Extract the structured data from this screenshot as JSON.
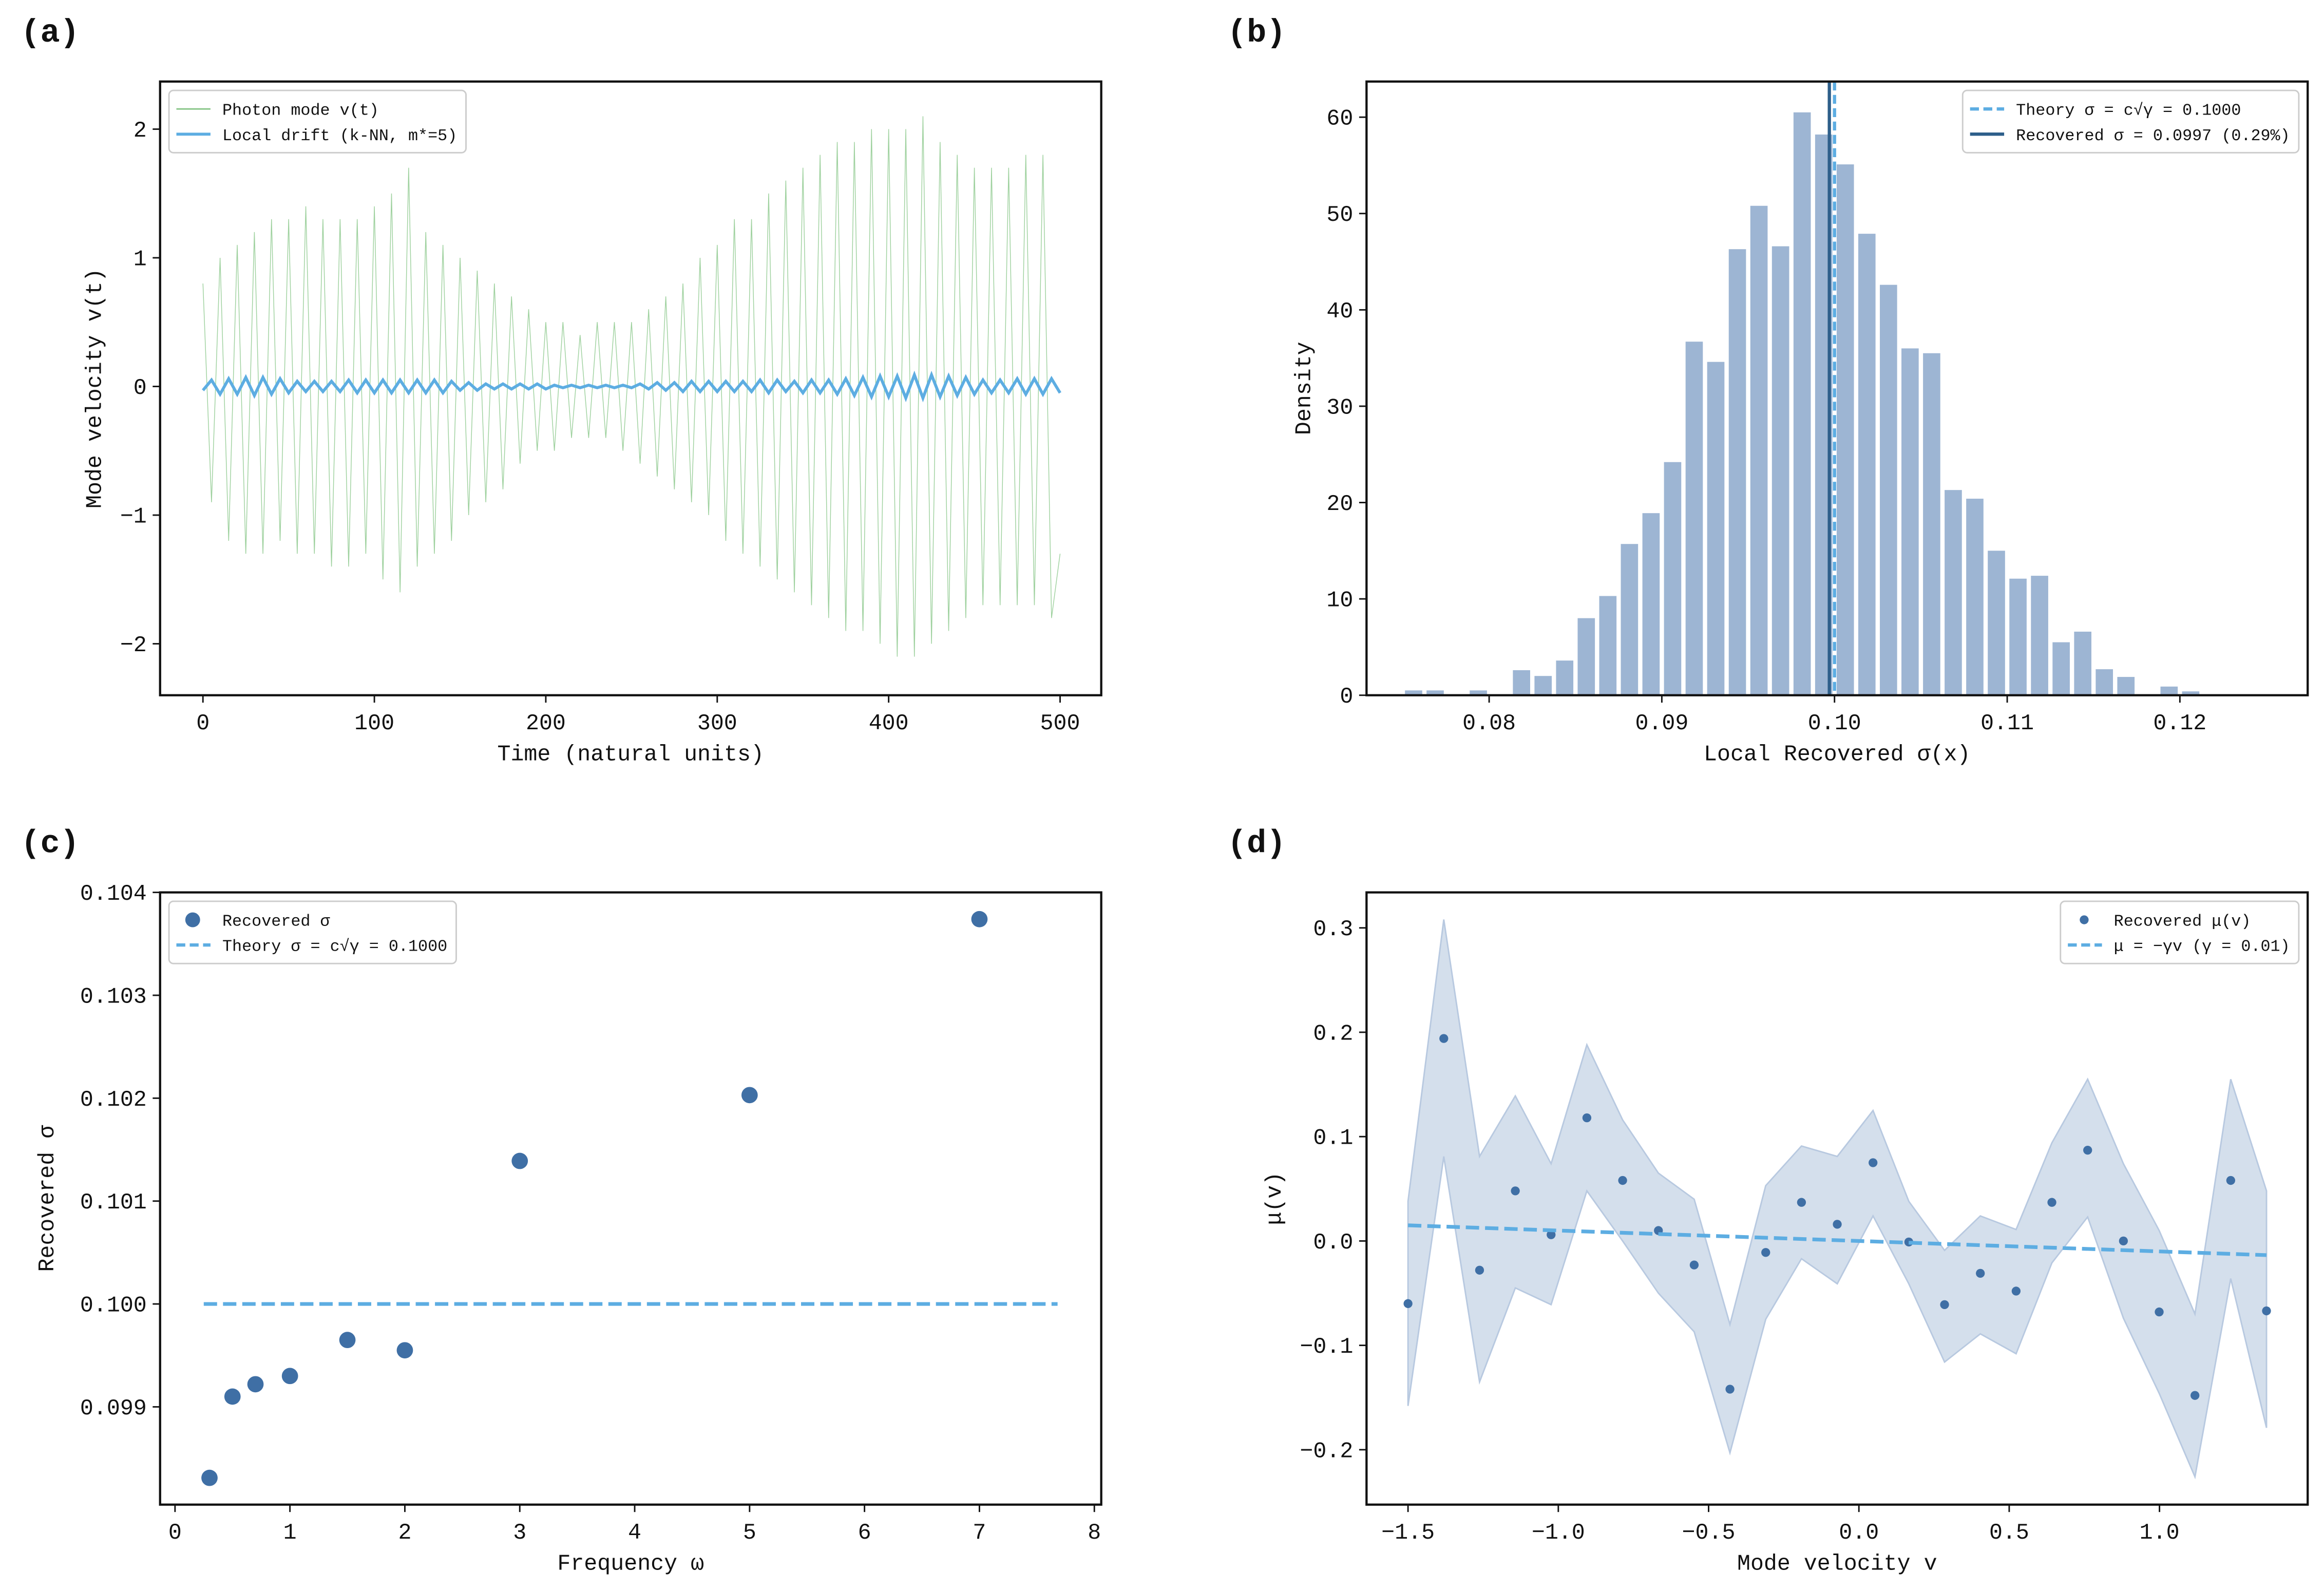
{
  "chart_data": [
    {
      "type": "line",
      "panel_label": "(a)",
      "xlabel": "Time (natural units)",
      "ylabel": "Mode velocity v(t)",
      "legend": "upper left",
      "xlim": [
        -25,
        524
      ],
      "ylim": [
        -2.4,
        2.37
      ],
      "xticks": [
        0,
        100,
        200,
        300,
        400,
        500
      ],
      "yticks": [
        {
          "value": -2,
          "label": "−2"
        },
        {
          "value": -1,
          "label": "−1"
        },
        0,
        1,
        2
      ],
      "x": [
        0,
        5,
        10,
        15,
        20,
        25,
        30,
        35,
        40,
        45,
        50,
        55,
        60,
        65,
        70,
        75,
        80,
        85,
        90,
        95,
        100,
        105,
        110,
        115,
        120,
        125,
        130,
        135,
        140,
        145,
        150,
        155,
        160,
        165,
        170,
        175,
        180,
        185,
        190,
        195,
        200,
        205,
        210,
        215,
        220,
        225,
        230,
        235,
        240,
        245,
        250,
        255,
        260,
        265,
        270,
        275,
        280,
        285,
        290,
        295,
        300,
        305,
        310,
        315,
        320,
        325,
        330,
        335,
        340,
        345,
        350,
        355,
        360,
        365,
        370,
        375,
        380,
        385,
        390,
        395,
        400,
        405,
        410,
        415,
        420,
        425,
        430,
        435,
        440,
        445,
        450,
        455,
        460,
        465,
        470,
        475,
        480,
        485,
        490,
        495,
        500
      ],
      "series": [
        {
          "name": "Photon mode v(t)",
          "color": "#86c586",
          "linewidth": 0.5,
          "values": [
            0.8,
            -0.9,
            1.0,
            -1.2,
            1.1,
            -1.3,
            1.2,
            -1.3,
            1.3,
            -1.2,
            1.3,
            -1.3,
            1.4,
            -1.3,
            1.3,
            -1.4,
            1.3,
            -1.4,
            1.3,
            -1.3,
            1.4,
            -1.5,
            1.5,
            -1.6,
            1.7,
            -1.4,
            1.2,
            -1.3,
            1.1,
            -1.2,
            1.0,
            -1.0,
            0.9,
            -0.9,
            0.8,
            -0.8,
            0.7,
            -0.6,
            0.6,
            -0.5,
            0.5,
            -0.5,
            0.5,
            -0.4,
            0.4,
            -0.4,
            0.5,
            -0.4,
            0.5,
            -0.5,
            0.5,
            -0.6,
            0.6,
            -0.7,
            0.7,
            -0.8,
            0.8,
            -0.9,
            1.0,
            -1.0,
            1.1,
            -1.2,
            1.3,
            -1.3,
            1.3,
            -1.4,
            1.5,
            -1.5,
            1.6,
            -1.6,
            1.7,
            -1.7,
            1.8,
            -1.8,
            1.9,
            -1.9,
            1.9,
            -1.9,
            2.0,
            -2.0,
            2.0,
            -2.1,
            2.0,
            -2.1,
            2.1,
            -2.0,
            1.9,
            -1.9,
            1.8,
            -1.8,
            1.7,
            -1.7,
            1.7,
            -1.7,
            1.7,
            -1.7,
            1.8,
            -1.7,
            1.8,
            -1.8,
            -1.3
          ]
        },
        {
          "name": "Local drift (k-NN, m*=5)",
          "color": "#5dade2",
          "linewidth": 2,
          "values": [
            -0.03,
            0.05,
            -0.06,
            0.06,
            -0.06,
            0.07,
            -0.07,
            0.07,
            -0.06,
            0.06,
            -0.05,
            0.04,
            -0.04,
            0.04,
            -0.04,
            0.04,
            -0.04,
            0.05,
            -0.05,
            0.05,
            -0.05,
            0.05,
            -0.05,
            0.05,
            -0.05,
            0.05,
            -0.05,
            0.05,
            -0.05,
            0.04,
            -0.03,
            0.03,
            -0.03,
            0.02,
            -0.02,
            0.02,
            -0.02,
            0.02,
            -0.02,
            0.02,
            -0.02,
            0.01,
            -0.01,
            0.01,
            -0.01,
            0.01,
            -0.01,
            0.01,
            -0.01,
            0.01,
            -0.01,
            0.02,
            -0.02,
            0.03,
            -0.03,
            0.03,
            -0.04,
            0.04,
            -0.04,
            0.04,
            -0.04,
            0.04,
            -0.04,
            0.04,
            -0.04,
            0.05,
            -0.05,
            0.05,
            -0.04,
            0.04,
            -0.05,
            0.05,
            -0.05,
            0.05,
            -0.06,
            0.06,
            -0.07,
            0.07,
            -0.08,
            0.08,
            -0.08,
            0.08,
            -0.09,
            0.09,
            -0.09,
            0.09,
            -0.08,
            0.08,
            -0.07,
            0.07,
            -0.06,
            0.05,
            -0.05,
            0.05,
            -0.05,
            0.06,
            -0.06,
            0.06,
            -0.06,
            0.06,
            -0.05
          ]
        }
      ]
    },
    {
      "type": "histogram",
      "panel_label": "(b)",
      "xlabel": "Local Recovered σ(x)",
      "ylabel": "Density",
      "legend": "upper right",
      "xlim": [
        0.0729,
        0.1274
      ],
      "ylim": [
        0,
        63.7
      ],
      "xticks": [
        0.08,
        0.09,
        {
          "value": 0.1,
          "label": "0.10"
        },
        0.11,
        0.12
      ],
      "yticks": [
        0,
        10,
        20,
        30,
        40,
        50,
        60
      ],
      "color": "#9db5d3",
      "bins": [
        0.075,
        0.07625,
        0.0775,
        0.07875,
        0.08,
        0.08125,
        0.0825,
        0.08375,
        0.085,
        0.08625,
        0.0875,
        0.08875,
        0.09,
        0.09125,
        0.0925,
        0.09375,
        0.095,
        0.09625,
        0.0975,
        0.09875,
        0.1,
        0.10125,
        0.1025,
        0.10375,
        0.105,
        0.10625,
        0.1075,
        0.10875,
        0.11,
        0.11125,
        0.1125,
        0.11375,
        0.115,
        0.11625,
        0.1175,
        0.11875,
        0.12,
        0.12125
      ],
      "values": [
        0.5,
        0.5,
        0,
        0.5,
        0,
        2.6,
        2.0,
        3.6,
        8.0,
        10.3,
        15.7,
        18.9,
        24.2,
        36.7,
        34.6,
        46.3,
        50.8,
        46.6,
        60.5,
        58.2,
        55.1,
        47.9,
        42.6,
        36.0,
        35.5,
        21.3,
        20.4,
        15.0,
        12.1,
        12.4,
        5.5,
        6.6,
        2.7,
        1.9,
        0,
        0.9,
        0.4
      ],
      "series": [
        {
          "name": "Theory σ = c√γ = 0.1000",
          "color": "#5dade2",
          "style": "dashed",
          "x_value": 0.1
        },
        {
          "name": "Recovered σ = 0.0997 (0.29%)",
          "color": "#2e5f8a",
          "x_value": 0.0997
        }
      ]
    },
    {
      "type": "scatter",
      "panel_label": "(c)",
      "xlabel": "Frequency ω",
      "ylabel": "Recovered σ",
      "legend": "upper left",
      "xlim": [
        -0.13,
        8.06
      ],
      "ylim": [
        0.09805,
        0.104
      ],
      "xticks": [
        0,
        1,
        2,
        3,
        4,
        5,
        6,
        7,
        8
      ],
      "yticks": [
        0.099,
        {
          "value": 0.1,
          "label": "0.100"
        },
        0.101,
        0.102,
        0.103,
        0.104
      ],
      "series": [
        {
          "name": "Recovered σ",
          "color": "#3f6fa5",
          "x": [
            0.3,
            0.5,
            0.7,
            1,
            1.5,
            2,
            3,
            5,
            7
          ],
          "values": [
            0.09831,
            0.0991,
            0.09922,
            0.0993,
            0.09965,
            0.09955,
            0.10139,
            0.10203,
            0.10374
          ]
        },
        {
          "name": "Theory σ = c√γ = 0.1000",
          "color": "#5dade2",
          "type": "line",
          "style": "dashed",
          "x": [
            0.25,
            7.68
          ],
          "values": [
            0.1,
            0.1
          ]
        }
      ]
    },
    {
      "type": "scatter",
      "panel_label": "(d)",
      "xlabel": "Mode velocity v",
      "ylabel": "μ(v)",
      "legend": "upper right",
      "xlim": [
        -1.638,
        1.493
      ],
      "ylim": [
        -0.2526,
        0.334
      ],
      "xticks": [
        {
          "value": -1.5,
          "label": "−1.5"
        },
        {
          "value": -1,
          "label": "−1.0"
        },
        {
          "value": -0.5,
          "label": "−0.5"
        },
        {
          "value": 0,
          "label": "0.0"
        },
        0.5,
        {
          "value": 1,
          "label": "1.0"
        }
      ],
      "yticks": [
        {
          "value": -0.2,
          "label": "−0.2"
        },
        {
          "value": -0.1,
          "label": "−0.1"
        },
        {
          "value": 0,
          "label": "0.0"
        },
        0.1,
        0.2,
        0.3
      ],
      "band": {
        "color": "#b8c9e0",
        "x": [
          -1.5,
          -1.381,
          -1.262,
          -1.143,
          -1.024,
          -0.905,
          -0.786,
          -0.667,
          -0.548,
          -0.429,
          -0.31,
          -0.191,
          -0.072,
          0.047,
          0.166,
          0.285,
          0.404,
          0.523,
          0.642,
          0.761,
          0.88,
          0.999,
          1.118,
          1.237,
          1.356
        ],
        "upper": [
          0.038,
          0.308,
          0.081,
          0.139,
          0.074,
          0.188,
          0.116,
          0.065,
          0.04,
          -0.08,
          0.053,
          0.091,
          0.081,
          0.125,
          0.038,
          -0.009,
          0.024,
          0.011,
          0.094,
          0.155,
          0.074,
          0.01,
          -0.07,
          0.155,
          0.048
        ],
        "lower": [
          -0.158,
          0.081,
          -0.135,
          -0.045,
          -0.061,
          0.048,
          0,
          -0.05,
          -0.087,
          -0.203,
          -0.075,
          -0.017,
          -0.041,
          0.024,
          -0.041,
          -0.116,
          -0.089,
          -0.108,
          -0.021,
          0.023,
          -0.074,
          -0.146,
          -0.226,
          -0.036,
          -0.179
        ]
      },
      "series": [
        {
          "name": "Recovered μ(v)",
          "color": "#3f6fa5",
          "x": [
            -1.5,
            -1.381,
            -1.262,
            -1.143,
            -1.024,
            -0.905,
            -0.786,
            -0.667,
            -0.548,
            -0.429,
            -0.31,
            -0.191,
            -0.072,
            0.047,
            0.166,
            0.285,
            0.404,
            0.523,
            0.642,
            0.761,
            0.88,
            0.999,
            1.118,
            1.237,
            1.356
          ],
          "values": [
            -0.06,
            0.194,
            -0.028,
            0.048,
            0.006,
            0.118,
            0.058,
            0.01,
            -0.023,
            -0.142,
            -0.011,
            0.037,
            0.016,
            0.075,
            -0.001,
            -0.061,
            -0.031,
            -0.048,
            0.037,
            0.087,
            0,
            -0.068,
            -0.148,
            0.058,
            -0.067
          ]
        },
        {
          "name": "μ = −γv (γ = 0.01)",
          "color": "#5dade2",
          "type": "line",
          "style": "dashed",
          "x": [
            -1.5,
            1.356
          ],
          "values": [
            0.015,
            -0.01356
          ]
        }
      ]
    }
  ]
}
